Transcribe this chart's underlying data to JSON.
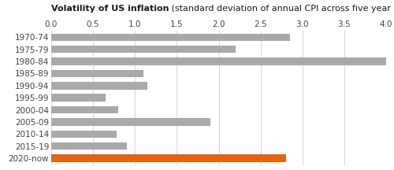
{
  "categories": [
    "1970-74",
    "1975-79",
    "1980-84",
    "1985-89",
    "1990-94",
    "1995-99",
    "2000-04",
    "2005-09",
    "2010-14",
    "2015-19",
    "2020-now"
  ],
  "values": [
    2.85,
    2.2,
    4.0,
    1.1,
    1.15,
    0.65,
    0.8,
    1.9,
    0.78,
    0.9,
    2.8
  ],
  "bar_colors": [
    "#a9a9a9",
    "#a9a9a9",
    "#a9a9a9",
    "#a9a9a9",
    "#a9a9a9",
    "#a9a9a9",
    "#a9a9a9",
    "#a9a9a9",
    "#a9a9a9",
    "#a9a9a9",
    "#e8630a"
  ],
  "title_bold": "Volatility of US inflation",
  "title_normal": " (standard deviation of annual CPI across five year periods)",
  "xlim": [
    0.0,
    4.0
  ],
  "xticks": [
    0.0,
    0.5,
    1.0,
    1.5,
    2.0,
    2.5,
    3.0,
    3.5,
    4.0
  ],
  "xtick_labels": [
    "0.0",
    "0.5",
    "1.0",
    "1.5",
    "2.0",
    "2.5",
    "3.0",
    "3.5",
    "4.0"
  ],
  "background_color": "#ffffff",
  "grid_color": "#d0d0d0",
  "tick_label_color": "#444444",
  "bar_height": 0.62,
  "title_fontsize": 8.0,
  "tick_fontsize": 7.5
}
